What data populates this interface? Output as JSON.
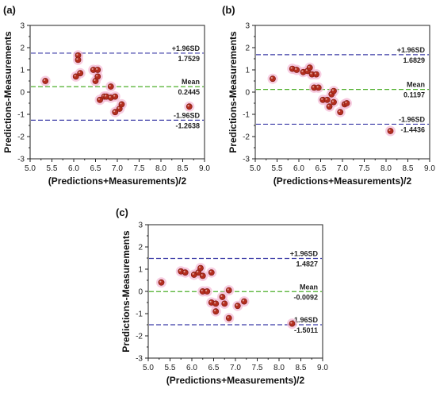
{
  "chart_data": [
    {
      "type": "scatter",
      "panel_label": "(a)",
      "xlabel": "(Predictions+Measurements)/2",
      "ylabel": "Predictions-Measurements",
      "xlim": [
        5.0,
        9.0
      ],
      "ylim": [
        -3,
        3
      ],
      "xticks": [
        "5.0",
        "5.5",
        "6.0",
        "6.5",
        "7.0",
        "7.5",
        "8.0",
        "8.5",
        "9.0"
      ],
      "yticks": [
        "-3",
        "-2",
        "-1",
        "0",
        "1",
        "2",
        "3"
      ],
      "grid": false,
      "points": [
        [
          5.35,
          0.5
        ],
        [
          6.05,
          0.7
        ],
        [
          6.1,
          1.65
        ],
        [
          6.1,
          1.45
        ],
        [
          6.15,
          0.85
        ],
        [
          6.45,
          1.0
        ],
        [
          6.55,
          1.0
        ],
        [
          6.5,
          0.5
        ],
        [
          6.55,
          0.7
        ],
        [
          6.6,
          -0.35
        ],
        [
          6.7,
          -0.2
        ],
        [
          6.75,
          -0.2
        ],
        [
          6.85,
          0.25
        ],
        [
          6.85,
          -0.25
        ],
        [
          6.95,
          -0.2
        ],
        [
          6.95,
          -0.9
        ],
        [
          7.05,
          -0.75
        ],
        [
          7.1,
          -0.55
        ],
        [
          8.65,
          -0.65
        ]
      ],
      "lines": [
        {
          "kind": "upper",
          "value": 1.7529,
          "label": "+1.96SD",
          "value_label": "1.7529",
          "color": "#3a3aa6"
        },
        {
          "kind": "mean",
          "value": 0.2445,
          "label": "Mean",
          "value_label": "0.2445",
          "color": "#4caf2a"
        },
        {
          "kind": "lower",
          "value": -1.2638,
          "label": "-1.96SD",
          "value_label": "-1.2638",
          "color": "#3a3aa6"
        }
      ],
      "marker_color": "#b32d1e",
      "halo_color": "#f4b8d4"
    },
    {
      "type": "scatter",
      "panel_label": "(b)",
      "xlabel": "(Predictions+Measurements)/2",
      "ylabel": "Predictions-Measurements",
      "xlim": [
        5.0,
        9.0
      ],
      "ylim": [
        -3,
        3
      ],
      "xticks": [
        "5.0",
        "5.5",
        "6.0",
        "6.5",
        "7.0",
        "7.5",
        "8.0",
        "8.5",
        "9.0"
      ],
      "yticks": [
        "-3",
        "-2",
        "-1",
        "0",
        "1",
        "2",
        "3"
      ],
      "grid": false,
      "points": [
        [
          5.4,
          0.6
        ],
        [
          5.85,
          1.05
        ],
        [
          5.95,
          1.0
        ],
        [
          6.1,
          0.9
        ],
        [
          6.2,
          0.95
        ],
        [
          6.25,
          1.1
        ],
        [
          6.3,
          0.8
        ],
        [
          6.4,
          0.8
        ],
        [
          6.35,
          0.2
        ],
        [
          6.45,
          0.2
        ],
        [
          6.55,
          -0.35
        ],
        [
          6.65,
          -0.35
        ],
        [
          6.7,
          -0.65
        ],
        [
          6.75,
          -0.1
        ],
        [
          6.8,
          -0.45
        ],
        [
          6.8,
          0.05
        ],
        [
          6.95,
          -0.9
        ],
        [
          7.05,
          -0.55
        ],
        [
          7.1,
          -0.5
        ],
        [
          8.1,
          -1.75
        ]
      ],
      "lines": [
        {
          "kind": "upper",
          "value": 1.6829,
          "label": "+1.96SD",
          "value_label": "1.6829",
          "color": "#3a3aa6"
        },
        {
          "kind": "mean",
          "value": 0.1197,
          "label": "Mean",
          "value_label": "0.1197",
          "color": "#4caf2a"
        },
        {
          "kind": "lower",
          "value": -1.4436,
          "label": "-1.96SD",
          "value_label": "-1.4436",
          "color": "#3a3aa6"
        }
      ],
      "marker_color": "#b32d1e",
      "halo_color": "#f4b8d4"
    },
    {
      "type": "scatter",
      "panel_label": "(c)",
      "xlabel": "(Predictions+Measurements)/2",
      "ylabel": "Predictions-Measurements",
      "xlim": [
        5.0,
        9.0
      ],
      "ylim": [
        -3,
        3
      ],
      "xticks": [
        "5.0",
        "5.5",
        "6.0",
        "6.5",
        "7.0",
        "7.5",
        "8.0",
        "8.5",
        "9.0"
      ],
      "yticks": [
        "-3",
        "-2",
        "-1",
        "0",
        "1",
        "2",
        "3"
      ],
      "grid": false,
      "points": [
        [
          5.3,
          0.4
        ],
        [
          5.75,
          0.9
        ],
        [
          5.85,
          0.85
        ],
        [
          6.05,
          0.75
        ],
        [
          6.15,
          0.85
        ],
        [
          6.2,
          1.05
        ],
        [
          6.25,
          0.7
        ],
        [
          6.45,
          0.85
        ],
        [
          6.25,
          0.0
        ],
        [
          6.35,
          0.0
        ],
        [
          6.45,
          -0.5
        ],
        [
          6.55,
          -0.55
        ],
        [
          6.55,
          -0.9
        ],
        [
          6.7,
          -0.25
        ],
        [
          6.75,
          -0.55
        ],
        [
          6.85,
          0.05
        ],
        [
          6.85,
          -1.2
        ],
        [
          7.05,
          -0.65
        ],
        [
          7.2,
          -0.45
        ],
        [
          8.3,
          -1.45
        ]
      ],
      "lines": [
        {
          "kind": "upper",
          "value": 1.4827,
          "label": "+1.96SD",
          "value_label": "1.4827",
          "color": "#3a3aa6"
        },
        {
          "kind": "mean",
          "value": -0.0092,
          "label": "Mean",
          "value_label": "-0.0092",
          "color": "#4caf2a"
        },
        {
          "kind": "lower",
          "value": -1.5011,
          "label": "-1.96SD",
          "value_label": "-1.5011",
          "color": "#3a3aa6"
        }
      ],
      "marker_color": "#b32d1e",
      "halo_color": "#f4b8d4"
    }
  ]
}
